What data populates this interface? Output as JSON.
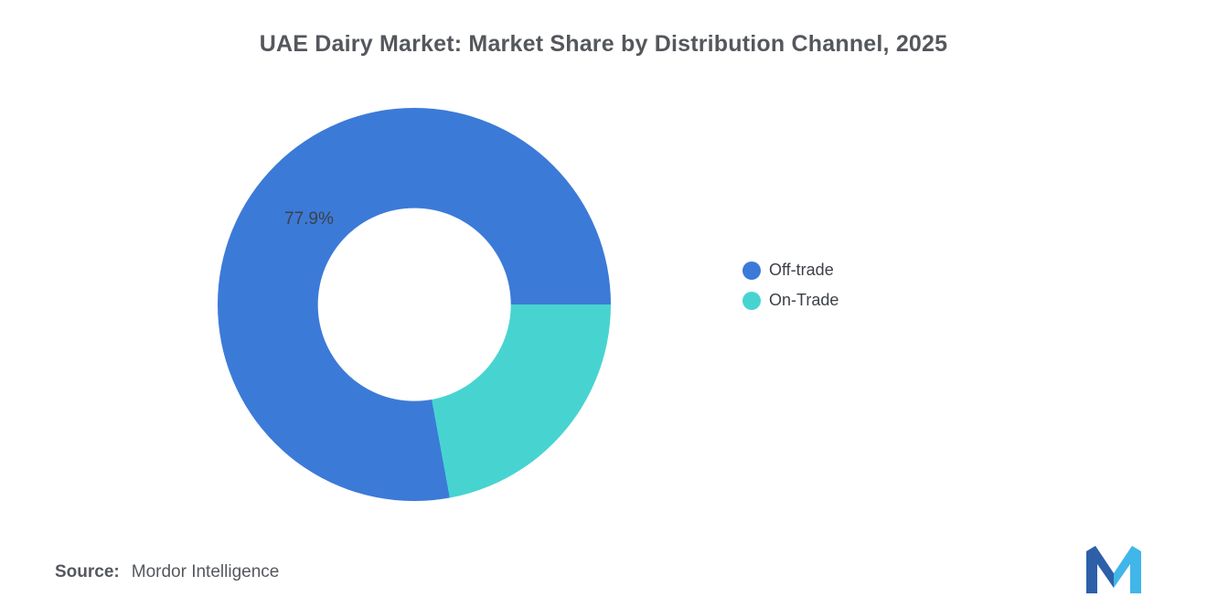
{
  "title": "UAE Dairy Market: Market Share by Distribution Channel, 2025",
  "chart_data": {
    "type": "pie",
    "subtype": "donut",
    "title": "UAE Dairy Market: Market Share by Distribution Channel, 2025",
    "unit": "%",
    "slices": [
      {
        "label": "Off-trade",
        "value": 77.9,
        "color": "#3c7ad8",
        "display_label": "77.9%"
      },
      {
        "label": "On-Trade",
        "value": 22.1,
        "color": "#47d4d1",
        "display_label": ""
      }
    ],
    "total": 100,
    "start_angle_deg": 169.6,
    "inner_radius_ratio": 0.49,
    "legend_position": "right",
    "background": "#ffffff"
  },
  "legend": {
    "items": [
      {
        "label": "Off-trade",
        "color": "#3c7ad8"
      },
      {
        "label": "On-Trade",
        "color": "#47d4d1"
      }
    ]
  },
  "source": {
    "label": "Source:",
    "value": "Mordor Intelligence"
  },
  "logo": {
    "name": "mordor-intelligence-logo",
    "color_left": "#2e5fa9",
    "color_right": "#41b6e8"
  }
}
